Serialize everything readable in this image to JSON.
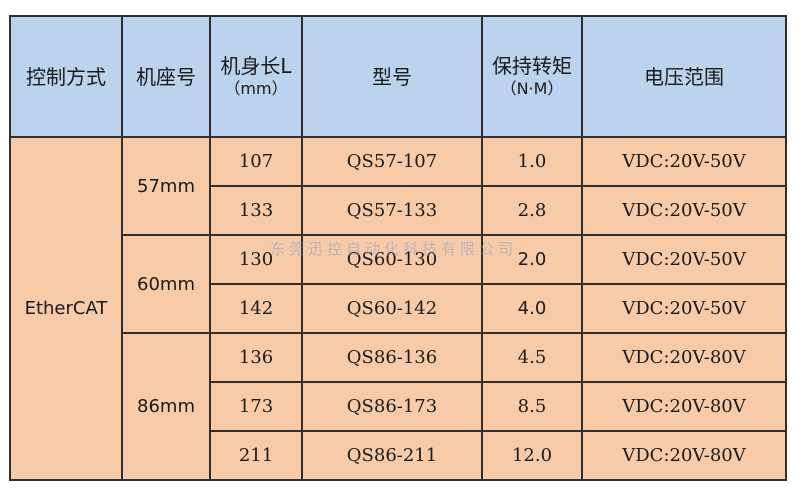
{
  "headers": {
    "control": "控制方式",
    "frame": "机座号",
    "length_line1": "机身长L",
    "length_line2": "（mm）",
    "model": "型号",
    "torque_line1": "保持转矩",
    "torque_line2": "（N·M）",
    "voltage": "电压范围"
  },
  "control_mode": "EtherCAT",
  "groups": [
    {
      "frame": "57mm",
      "rows": [
        {
          "length": "107",
          "model": "QS57-107",
          "torque": "1.0",
          "voltage": "VDC:20V-50V"
        },
        {
          "length": "133",
          "model": "QS57-133",
          "torque": "2.8",
          "voltage": "VDC:20V-50V"
        }
      ]
    },
    {
      "frame": "60mm",
      "rows": [
        {
          "length": "130",
          "model": "QS60-130",
          "torque": "2.0",
          "voltage": "VDC:20V-50V"
        },
        {
          "length": "142",
          "model": "QS60-142",
          "torque": "4.0",
          "voltage": "VDC:20V-50V"
        }
      ]
    },
    {
      "frame": "86mm",
      "rows": [
        {
          "length": "136",
          "model": "QS86-136",
          "torque": "4.5",
          "voltage": "VDC:20V-80V"
        },
        {
          "length": "173",
          "model": "QS86-173",
          "torque": "8.5",
          "voltage": "VDC:20V-80V"
        },
        {
          "length": "211",
          "model": "QS86-211",
          "torque": "12.0",
          "voltage": "VDC:20V-80V"
        }
      ]
    }
  ],
  "watermark": "东莞迅控自动化科技有限公司"
}
